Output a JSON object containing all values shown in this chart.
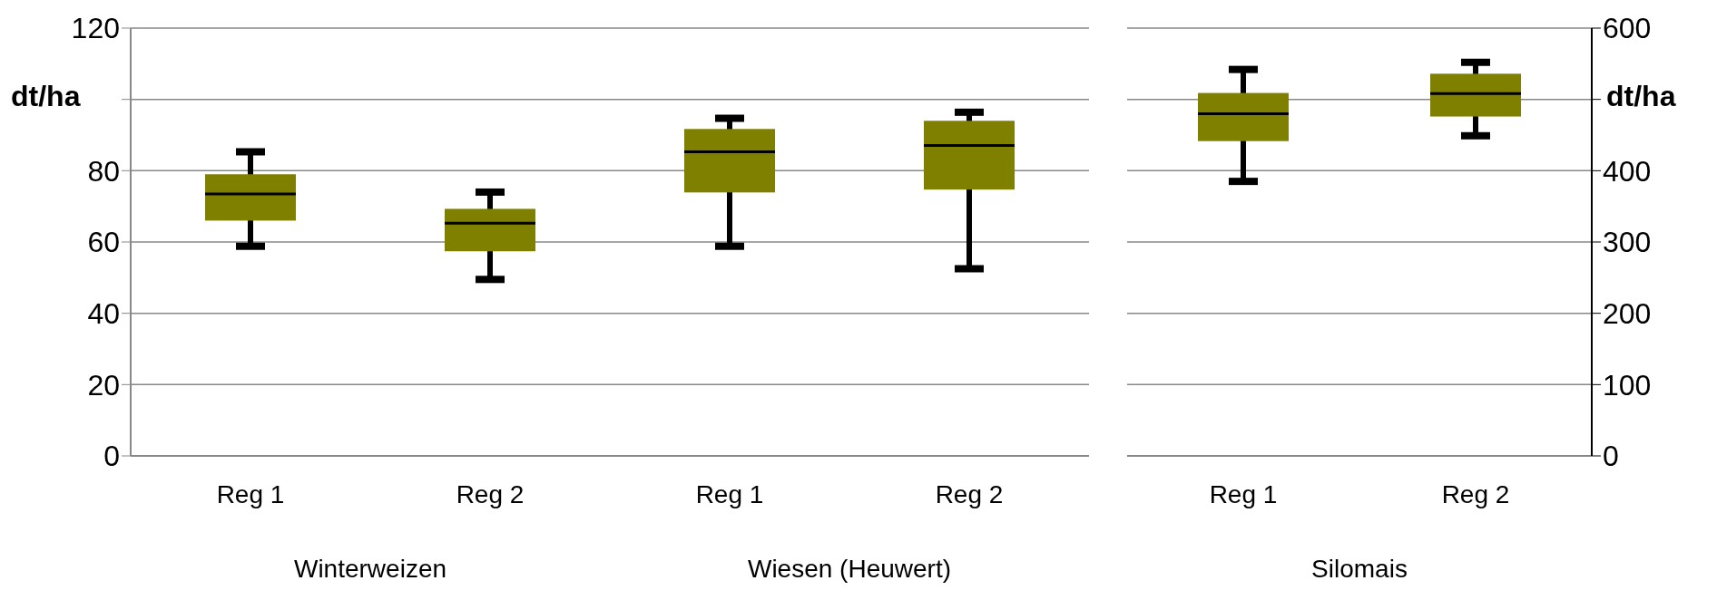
{
  "chart_data": [
    {
      "type": "box",
      "categories": [
        "Reg 1",
        "Reg 2",
        "Reg 1",
        "Reg 2"
      ],
      "ylabel": "dt/ha",
      "ylim": [
        0,
        120
      ],
      "yticks": [
        0,
        20,
        40,
        60,
        80,
        {
          "value": 100,
          "label": null
        },
        120
      ],
      "grid": "y",
      "annotations": [
        "Winterweizen",
        "Wiesen (Heuwert)"
      ],
      "series": [
        {
          "color": "#808000",
          "boxes": [
            {
              "low": 58.8,
              "q1": 66,
              "median": 73.5,
              "q3": 79,
              "high": 85.3
            },
            {
              "low": 49.5,
              "q1": 57.4,
              "median": 65.3,
              "q3": 69.3,
              "high": 74
            },
            {
              "low": 58.8,
              "q1": 73.9,
              "median": 85.3,
              "q3": 91.7,
              "high": 94.7
            },
            {
              "low": 52.5,
              "q1": 74.7,
              "median": 87.1,
              "q3": 94,
              "high": 96.4
            }
          ]
        }
      ]
    },
    {
      "type": "box",
      "categories": [
        "Reg 1",
        "Reg 2"
      ],
      "xlabel": "Silomais",
      "y2label": "dt/ha",
      "y2lim": [
        0,
        600
      ],
      "y2ticks": [
        0,
        100,
        200,
        300,
        400,
        {
          "value": 500,
          "label": null
        },
        600
      ],
      "grid": "y",
      "series": [
        {
          "axis": "y2",
          "color": "#808000",
          "boxes": [
            {
              "low": 385,
              "q1": 441.5,
              "median": 480,
              "q3": 509,
              "high": 542
            },
            {
              "low": 449,
              "q1": 476,
              "median": 508,
              "q3": 536,
              "high": 552
            }
          ]
        }
      ]
    }
  ]
}
